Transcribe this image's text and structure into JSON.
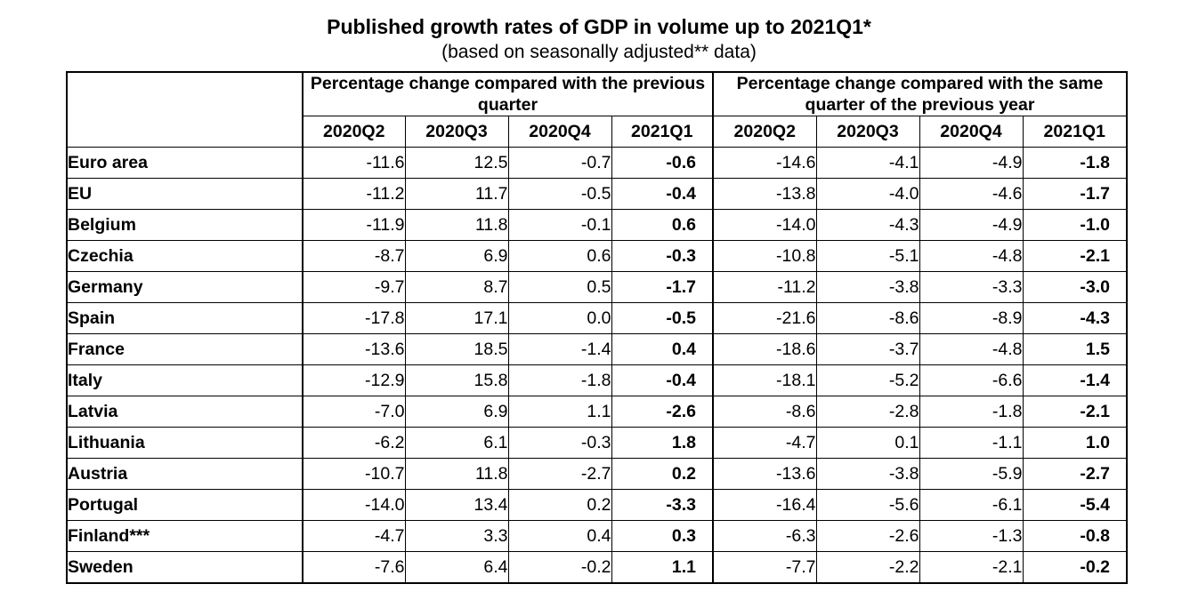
{
  "title": "Published growth rates of GDP in volume up to 2021Q1*",
  "subtitle": "(based on seasonally adjusted** data)",
  "table": {
    "group_headers": [
      "Percentage change compared with the previous quarter",
      "Percentage change compared with the same quarter of the previous year"
    ],
    "quarters": [
      "2020Q2",
      "2020Q3",
      "2020Q4",
      "2021Q1",
      "2020Q2",
      "2020Q3",
      "2020Q4",
      "2021Q1"
    ],
    "rows": [
      {
        "country": "Euro area",
        "values": [
          "-11.6",
          "12.5",
          "-0.7",
          "-0.6",
          "-14.6",
          "-4.1",
          "-4.9",
          "-1.8"
        ]
      },
      {
        "country": "EU",
        "values": [
          "-11.2",
          "11.7",
          "-0.5",
          "-0.4",
          "-13.8",
          "-4.0",
          "-4.6",
          "-1.7"
        ]
      },
      {
        "country": "Belgium",
        "values": [
          "-11.9",
          "11.8",
          "-0.1",
          "0.6",
          "-14.0",
          "-4.3",
          "-4.9",
          "-1.0"
        ]
      },
      {
        "country": "Czechia",
        "values": [
          "-8.7",
          "6.9",
          "0.6",
          "-0.3",
          "-10.8",
          "-5.1",
          "-4.8",
          "-2.1"
        ]
      },
      {
        "country": "Germany",
        "values": [
          "-9.7",
          "8.7",
          "0.5",
          "-1.7",
          "-11.2",
          "-3.8",
          "-3.3",
          "-3.0"
        ]
      },
      {
        "country": "Spain",
        "values": [
          "-17.8",
          "17.1",
          "0.0",
          "-0.5",
          "-21.6",
          "-8.6",
          "-8.9",
          "-4.3"
        ]
      },
      {
        "country": "France",
        "values": [
          "-13.6",
          "18.5",
          "-1.4",
          "0.4",
          "-18.6",
          "-3.7",
          "-4.8",
          "1.5"
        ]
      },
      {
        "country": "Italy",
        "values": [
          "-12.9",
          "15.8",
          "-1.8",
          "-0.4",
          "-18.1",
          "-5.2",
          "-6.6",
          "-1.4"
        ]
      },
      {
        "country": "Latvia",
        "values": [
          "-7.0",
          "6.9",
          "1.1",
          "-2.6",
          "-8.6",
          "-2.8",
          "-1.8",
          "-2.1"
        ]
      },
      {
        "country": "Lithuania",
        "values": [
          "-6.2",
          "6.1",
          "-0.3",
          "1.8",
          "-4.7",
          "0.1",
          "-1.1",
          "1.0"
        ]
      },
      {
        "country": "Austria",
        "values": [
          "-10.7",
          "11.8",
          "-2.7",
          "0.2",
          "-13.6",
          "-3.8",
          "-5.9",
          "-2.7"
        ]
      },
      {
        "country": "Portugal",
        "values": [
          "-14.0",
          "13.4",
          "0.2",
          "-3.3",
          "-16.4",
          "-5.6",
          "-6.1",
          "-5.4"
        ]
      },
      {
        "country": "Finland***",
        "values": [
          "-4.7",
          "3.3",
          "0.4",
          "0.3",
          "-6.3",
          "-2.6",
          "-1.3",
          "-0.8"
        ]
      },
      {
        "country": "Sweden",
        "values": [
          "-7.6",
          "6.4",
          "-0.2",
          "1.1",
          "-7.7",
          "-2.2",
          "-2.1",
          "-0.2"
        ]
      }
    ]
  }
}
